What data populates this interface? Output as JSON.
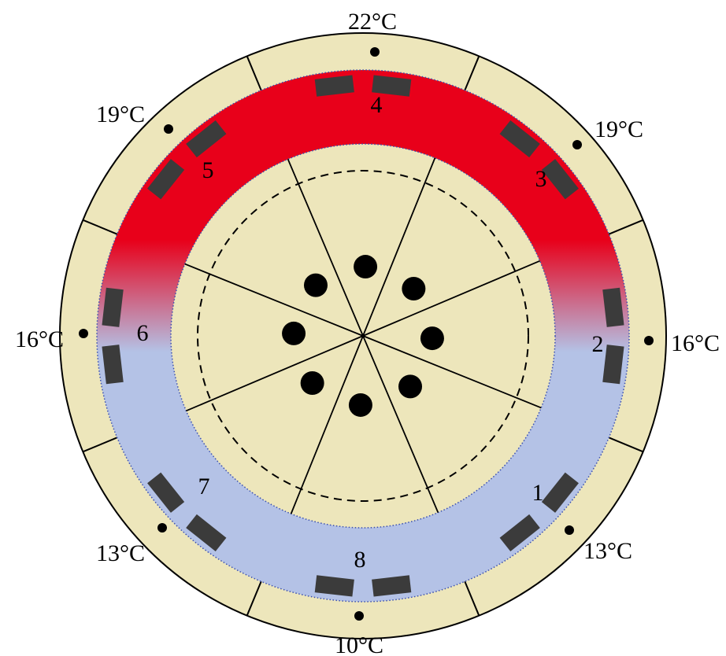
{
  "colors": {
    "background": "#ffffff",
    "outer_ring": "#ede6bb",
    "center_disc": "#ede6bb",
    "hot": "#e8001a",
    "cold": "#b4c2e6",
    "heater_block": "#3b3b3b",
    "line": "#000000"
  },
  "diagram": {
    "temperature_labels": [
      "22°C",
      "19°C",
      "19°C",
      "16°C",
      "16°C",
      "13°C",
      "13°C",
      "10°C"
    ],
    "zone_labels": [
      "1",
      "2",
      "3",
      "4",
      "5",
      "6",
      "7",
      "8"
    ],
    "center_holes_count": 8,
    "center_sectors_count": 8
  }
}
